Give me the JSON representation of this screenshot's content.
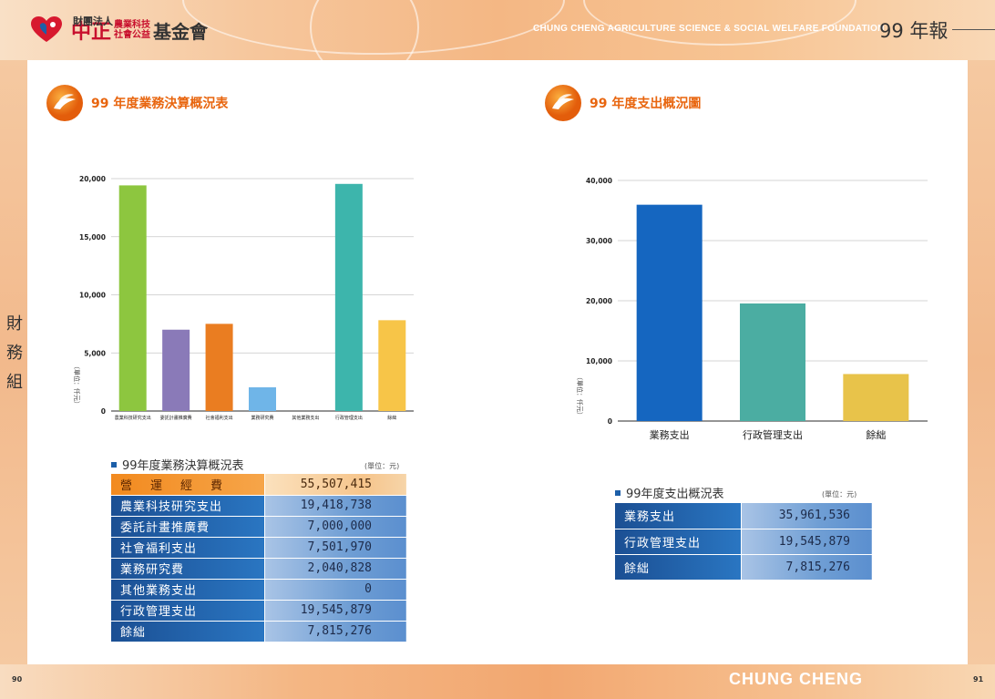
{
  "header": {
    "logo_small": "財團法人",
    "logo_main": "中正",
    "logo_stack_top": "農業科技",
    "logo_stack_bottom": "社會公益",
    "logo_end": "基金會",
    "foundation_en": "CHUNG CHENG AGRICULTURE SCIENCE & SOCIAL WELFARE FOUNDATION",
    "annual_label": "99 年報"
  },
  "side_tab": [
    "財",
    "務",
    "組"
  ],
  "left": {
    "section_title": "99 年度業務決算概況表",
    "table_caption": "99年度業務決算概況表",
    "table_unit": "(單位：元)",
    "table": [
      {
        "label": "營運經費",
        "value": "55,507,415",
        "highlight": true
      },
      {
        "label": "農業科技研究支出",
        "value": "19,418,738"
      },
      {
        "label": "委託計畫推廣費",
        "value": "7,000,000"
      },
      {
        "label": "社會福利支出",
        "value": "7,501,970"
      },
      {
        "label": "業務研究費",
        "value": "2,040,828"
      },
      {
        "label": "其他業務支出",
        "value": "0"
      },
      {
        "label": "行政管理支出",
        "value": "19,545,879"
      },
      {
        "label": "餘絀",
        "value": "7,815,276"
      }
    ]
  },
  "right": {
    "section_title": "99 年度支出概況圖",
    "table_caption": "99年度支出概況表",
    "table_unit": "(單位：元)",
    "table": [
      {
        "label": "業務支出",
        "value": "35,961,536"
      },
      {
        "label": "行政管理支出",
        "value": "19,545,879"
      },
      {
        "label": "餘絀",
        "value": "7,815,276"
      }
    ]
  },
  "chart_data": [
    {
      "type": "bar",
      "ylabel": "（單位：仟元）",
      "ylim": [
        0,
        20000
      ],
      "yticks": [
        "0",
        "5,000",
        "10,000",
        "15,000",
        "20,000"
      ],
      "grid": true,
      "categories": [
        "農業科技研究支出",
        "委託計畫推廣費",
        "社會福利支出",
        "業務研究費",
        "其他業務支出",
        "行政管理支出",
        "餘絀"
      ],
      "values": [
        19419,
        7000,
        7502,
        2041,
        0,
        19546,
        7815
      ],
      "colors": [
        "#8dc63f",
        "#8a7ab8",
        "#ea7d21",
        "#6fb5e8",
        "#cccccc",
        "#3db5ac",
        "#f7c548"
      ]
    },
    {
      "type": "bar",
      "ylabel": "（單位：仟元）",
      "ylim": [
        0,
        40000
      ],
      "yticks": [
        "0",
        "10,000",
        "20,000",
        "30,000",
        "40,000"
      ],
      "grid": true,
      "categories": [
        "業務支出",
        "行政管理支出",
        "餘絀"
      ],
      "values": [
        35962,
        19546,
        7815
      ],
      "colors": [
        "#1566c0",
        "#4bada2",
        "#e8c34a"
      ]
    }
  ],
  "footer": {
    "page_left": "90",
    "page_right": "91",
    "brand": "CHUNG CHENG"
  }
}
